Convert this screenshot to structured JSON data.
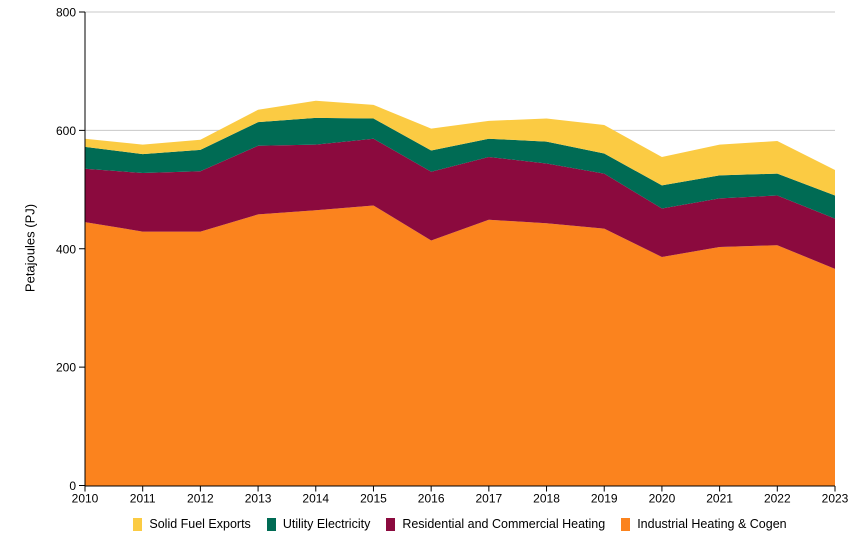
{
  "chart_data": {
    "type": "area",
    "stacked": true,
    "ylabel": "Petajoules (PJ)",
    "xlabel": "",
    "ylim": [
      0,
      800
    ],
    "yticks": [
      0,
      200,
      400,
      600,
      800
    ],
    "gridlines": [
      600,
      800
    ],
    "grid_color": "#C8C8C8",
    "axis_color": "#000000",
    "legend_position": "bottom",
    "legend_order": "top-series-first",
    "x": [
      2010,
      2011,
      2012,
      2013,
      2014,
      2015,
      2016,
      2017,
      2018,
      2019,
      2020,
      2021,
      2022,
      2023
    ],
    "series": [
      {
        "name": "Industrial Heating & Cogen",
        "color": "#FB831E",
        "values": [
          445,
          429,
          429,
          458,
          465,
          473,
          414,
          449,
          443,
          434,
          386,
          403,
          406,
          366
        ]
      },
      {
        "name": "Residential and Commercial Heating",
        "color": "#8B0A3E",
        "values": [
          90,
          99,
          102,
          116,
          111,
          113,
          116,
          106,
          101,
          93,
          82,
          82,
          84,
          85
        ]
      },
      {
        "name": "Utility Electricity",
        "color": "#006B54",
        "values": [
          37,
          32,
          36,
          40,
          45,
          34,
          36,
          31,
          37,
          34,
          39,
          39,
          37,
          39
        ]
      },
      {
        "name": "Solid Fuel Exports",
        "color": "#FBCB43",
        "values": [
          14,
          16,
          17,
          21,
          29,
          23,
          37,
          30,
          39,
          48,
          48,
          52,
          55,
          43
        ]
      }
    ]
  }
}
